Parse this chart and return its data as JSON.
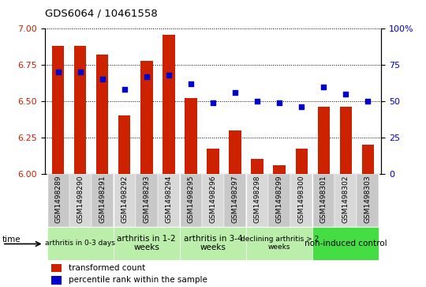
{
  "title": "GDS6064 / 10461558",
  "samples": [
    "GSM1498289",
    "GSM1498290",
    "GSM1498291",
    "GSM1498292",
    "GSM1498293",
    "GSM1498294",
    "GSM1498295",
    "GSM1498296",
    "GSM1498297",
    "GSM1498298",
    "GSM1498299",
    "GSM1498300",
    "GSM1498301",
    "GSM1498302",
    "GSM1498303"
  ],
  "bar_values": [
    6.88,
    6.88,
    6.82,
    6.4,
    6.78,
    6.96,
    6.52,
    6.17,
    6.3,
    6.1,
    6.06,
    6.17,
    6.46,
    6.46,
    6.2
  ],
  "dot_values": [
    70,
    70,
    65,
    58,
    67,
    68,
    62,
    49,
    56,
    50,
    49,
    46,
    60,
    55,
    50
  ],
  "bar_color": "#CC2200",
  "dot_color": "#0000CC",
  "ylim_left": [
    6.0,
    7.0
  ],
  "ylim_right": [
    0,
    100
  ],
  "yticks_left": [
    6.0,
    6.25,
    6.5,
    6.75,
    7.0
  ],
  "yticks_right": [
    0,
    25,
    50,
    75,
    100
  ],
  "grid_values": [
    6.25,
    6.5,
    6.75,
    7.0
  ],
  "groups": [
    {
      "label": "arthritis in 0-3 days",
      "start": 0,
      "end": 3,
      "color": "#bbeeaa",
      "fontsize": 6.5
    },
    {
      "label": "arthritis in 1-2\nweeks",
      "start": 3,
      "end": 6,
      "color": "#bbeeaa",
      "fontsize": 7.5
    },
    {
      "label": "arthritis in 3-4\nweeks",
      "start": 6,
      "end": 9,
      "color": "#bbeeaa",
      "fontsize": 7.5
    },
    {
      "label": "declining arthritis > 2\nweeks",
      "start": 9,
      "end": 12,
      "color": "#bbeeaa",
      "fontsize": 6.5
    },
    {
      "label": "non-induced control",
      "start": 12,
      "end": 15,
      "color": "#44dd44",
      "fontsize": 7.5
    }
  ],
  "legend_items": [
    {
      "label": "transformed count",
      "color": "#CC2200"
    },
    {
      "label": "percentile rank within the sample",
      "color": "#0000CC"
    }
  ],
  "bar_width": 0.55,
  "tick_label_color_left": "#CC2200",
  "tick_label_color_right": "#0000CC",
  "sample_box_color": "#cccccc",
  "group_border_color": "#888888"
}
